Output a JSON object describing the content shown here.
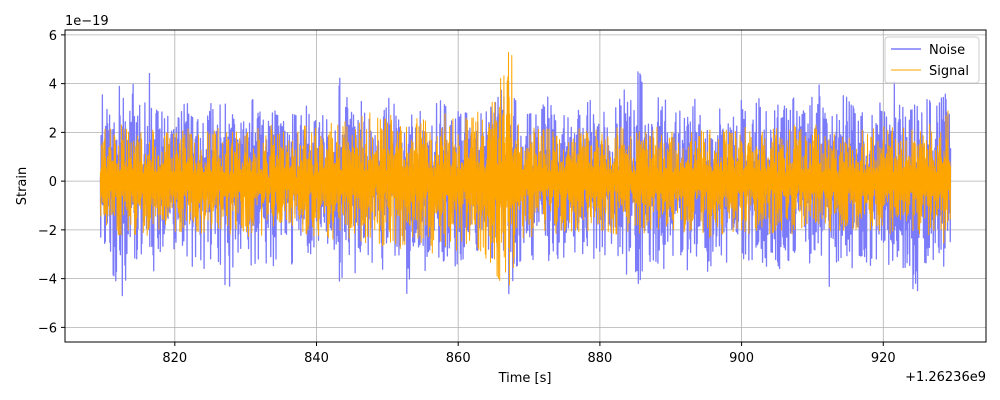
{
  "chart_data": {
    "type": "line",
    "title": "",
    "xlabel": "Time [s]",
    "ylabel": "Strain",
    "x_offset_label": "+1.26236e9",
    "y_scale_label": "1e−19",
    "xlim": [
      804.5,
      934.5
    ],
    "ylim": [
      -6.6,
      6.2
    ],
    "x_ticks": [
      820,
      840,
      860,
      880,
      900,
      920
    ],
    "x_tick_labels": [
      "820",
      "840",
      "860",
      "880",
      "900",
      "920"
    ],
    "y_ticks": [
      -6,
      -4,
      -2,
      0,
      2,
      4,
      6
    ],
    "y_tick_labels": [
      "−6",
      "−4",
      "−2",
      "0",
      "2",
      "4",
      "6"
    ],
    "grid": true,
    "legend_position": "upper right",
    "x_range": [
      809.5,
      929.5
    ],
    "series": [
      {
        "name": "Noise",
        "color": "#7b7bfa",
        "envelope": [
          [
            809.5,
            4.0,
            -2.6
          ],
          [
            810.5,
            3.2,
            -2.8
          ],
          [
            811.5,
            2.6,
            -4.1
          ],
          [
            812.5,
            4.5,
            -6.0
          ],
          [
            813.5,
            3.1,
            -2.5
          ],
          [
            814.5,
            5.6,
            -3.6
          ],
          [
            815.5,
            3.0,
            -2.8
          ],
          [
            816.5,
            4.6,
            -4.2
          ],
          [
            817.5,
            2.8,
            -3.3
          ],
          [
            818.5,
            3.2,
            -2.6
          ],
          [
            819.5,
            2.5,
            -3.0
          ],
          [
            820.5,
            2.6,
            -2.9
          ],
          [
            821.5,
            3.3,
            -3.2
          ],
          [
            822.5,
            3.0,
            -3.5
          ],
          [
            823.5,
            2.6,
            -3.2
          ],
          [
            824.5,
            3.6,
            -3.8
          ],
          [
            825.5,
            2.9,
            -2.7
          ],
          [
            826.5,
            4.3,
            -3.6
          ],
          [
            827.5,
            2.7,
            -4.7
          ],
          [
            828.5,
            3.2,
            -3.0
          ],
          [
            829.5,
            2.6,
            -2.8
          ],
          [
            830.5,
            3.5,
            -3.3
          ],
          [
            831.5,
            3.2,
            -3.8
          ],
          [
            832.5,
            2.5,
            -3.0
          ],
          [
            833.5,
            3.6,
            -3.9
          ],
          [
            834.5,
            2.7,
            -3.0
          ],
          [
            835.5,
            2.4,
            -2.7
          ],
          [
            836.5,
            2.8,
            -3.4
          ],
          [
            837.5,
            2.6,
            -2.8
          ],
          [
            838.5,
            3.2,
            -3.0
          ],
          [
            839.5,
            2.6,
            -3.2
          ],
          [
            840.5,
            2.8,
            -2.6
          ],
          [
            841.5,
            2.5,
            -2.8
          ],
          [
            842.5,
            2.7,
            -3.1
          ],
          [
            843.5,
            5.2,
            -4.9
          ],
          [
            844.5,
            3.0,
            -2.9
          ],
          [
            845.5,
            2.6,
            -3.8
          ],
          [
            846.5,
            3.4,
            -2.9
          ],
          [
            847.5,
            3.2,
            -3.4
          ],
          [
            848.5,
            2.7,
            -3.2
          ],
          [
            849.5,
            2.9,
            -3.7
          ],
          [
            850.5,
            3.6,
            -3.1
          ],
          [
            851.5,
            2.6,
            -3.0
          ],
          [
            852.5,
            2.9,
            -5.0
          ],
          [
            853.5,
            3.0,
            -3.4
          ],
          [
            854.5,
            2.8,
            -3.0
          ],
          [
            855.5,
            3.2,
            -3.8
          ],
          [
            856.5,
            3.0,
            -2.9
          ],
          [
            857.5,
            3.4,
            -3.4
          ],
          [
            858.5,
            3.6,
            -3.1
          ],
          [
            859.5,
            3.0,
            -3.5
          ],
          [
            860.5,
            2.7,
            -3.2
          ],
          [
            861.5,
            2.9,
            -3.2
          ],
          [
            862.5,
            2.5,
            -2.8
          ],
          [
            863.5,
            3.2,
            -3.0
          ],
          [
            864.5,
            3.0,
            -3.4
          ],
          [
            865.5,
            3.3,
            -3.1
          ],
          [
            866.5,
            4.4,
            -4.1
          ],
          [
            867.5,
            4.4,
            -4.9
          ],
          [
            868.5,
            2.9,
            -3.4
          ],
          [
            869.5,
            2.6,
            -2.9
          ],
          [
            870.5,
            3.1,
            -3.6
          ],
          [
            871.5,
            2.8,
            -3.0
          ],
          [
            872.5,
            3.7,
            -3.2
          ],
          [
            873.5,
            2.7,
            -3.4
          ],
          [
            874.5,
            3.0,
            -3.0
          ],
          [
            875.5,
            2.6,
            -3.3
          ],
          [
            876.5,
            3.2,
            -3.1
          ],
          [
            877.5,
            2.8,
            -3.0
          ],
          [
            878.5,
            3.4,
            -3.3
          ],
          [
            879.5,
            2.9,
            -3.1
          ],
          [
            880.5,
            3.1,
            -3.2
          ],
          [
            881.5,
            2.7,
            -3.0
          ],
          [
            882.5,
            3.2,
            -3.5
          ],
          [
            883.5,
            5.2,
            -4.1
          ],
          [
            884.5,
            3.0,
            -3.0
          ],
          [
            885.5,
            4.7,
            -4.3
          ],
          [
            886.5,
            3.2,
            -3.0
          ],
          [
            887.5,
            2.9,
            -3.5
          ],
          [
            888.5,
            4.3,
            -5.5
          ],
          [
            889.5,
            3.0,
            -3.1
          ],
          [
            890.5,
            2.7,
            -3.3
          ],
          [
            891.5,
            3.1,
            -3.0
          ],
          [
            892.5,
            2.9,
            -3.8
          ],
          [
            893.5,
            3.4,
            -3.1
          ],
          [
            894.5,
            2.9,
            -3.2
          ],
          [
            895.5,
            3.3,
            -3.9
          ],
          [
            896.5,
            3.0,
            -3.0
          ],
          [
            897.5,
            3.6,
            -3.4
          ],
          [
            898.5,
            2.8,
            -3.2
          ],
          [
            899.5,
            3.2,
            -3.3
          ],
          [
            900.5,
            3.7,
            -4.1
          ],
          [
            901.5,
            2.9,
            -3.2
          ],
          [
            902.5,
            3.4,
            -3.1
          ],
          [
            903.5,
            3.0,
            -3.6
          ],
          [
            904.5,
            2.8,
            -3.0
          ],
          [
            905.5,
            3.3,
            -3.7
          ],
          [
            906.5,
            2.9,
            -3.3
          ],
          [
            907.5,
            3.5,
            -3.0
          ],
          [
            908.5,
            3.1,
            -3.2
          ],
          [
            909.5,
            2.8,
            -3.4
          ],
          [
            910.5,
            4.7,
            -3.2
          ],
          [
            911.5,
            3.0,
            -3.0
          ],
          [
            912.5,
            3.2,
            -4.5
          ],
          [
            913.5,
            2.9,
            -3.3
          ],
          [
            914.5,
            3.6,
            -3.1
          ],
          [
            915.5,
            3.1,
            -3.6
          ],
          [
            916.5,
            3.0,
            -3.2
          ],
          [
            917.5,
            3.5,
            -3.8
          ],
          [
            918.5,
            2.9,
            -3.3
          ],
          [
            919.5,
            3.2,
            -3.1
          ],
          [
            920.5,
            3.4,
            -3.5
          ],
          [
            921.5,
            4.2,
            -3.2
          ],
          [
            922.5,
            3.0,
            -3.0
          ],
          [
            923.5,
            3.1,
            -4.8
          ],
          [
            924.5,
            3.3,
            -5.1
          ],
          [
            925.5,
            2.8,
            -3.3
          ],
          [
            926.5,
            3.6,
            -3.4
          ],
          [
            927.5,
            3.0,
            -3.2
          ],
          [
            928.5,
            4.2,
            -3.6
          ],
          [
            929.5,
            2.9,
            -3.2
          ]
        ]
      },
      {
        "name": "Signal",
        "color": "#ffa500",
        "envelope": [
          [
            809.5,
            2.0,
            -2.0
          ],
          [
            810.5,
            2.2,
            -2.1
          ],
          [
            811.5,
            2.1,
            -2.2
          ],
          [
            812.5,
            2.4,
            -2.2
          ],
          [
            813.5,
            2.1,
            -2.0
          ],
          [
            814.5,
            2.3,
            -2.2
          ],
          [
            815.5,
            2.0,
            -2.1
          ],
          [
            816.5,
            2.2,
            -2.3
          ],
          [
            817.5,
            2.0,
            -2.0
          ],
          [
            818.5,
            2.1,
            -2.1
          ],
          [
            819.5,
            1.9,
            -2.0
          ],
          [
            820.5,
            2.0,
            -2.1
          ],
          [
            821.5,
            2.1,
            -2.0
          ],
          [
            822.5,
            2.2,
            -2.2
          ],
          [
            823.5,
            2.0,
            -2.1
          ],
          [
            824.5,
            2.3,
            -2.2
          ],
          [
            825.5,
            2.1,
            -2.0
          ],
          [
            826.5,
            2.2,
            -2.3
          ],
          [
            827.5,
            2.0,
            -2.2
          ],
          [
            828.5,
            2.1,
            -2.1
          ],
          [
            829.5,
            2.0,
            -2.0
          ],
          [
            830.5,
            2.4,
            -2.3
          ],
          [
            831.5,
            2.2,
            -2.6
          ],
          [
            832.5,
            2.0,
            -2.1
          ],
          [
            833.5,
            2.3,
            -2.2
          ],
          [
            834.5,
            2.1,
            -2.0
          ],
          [
            835.5,
            2.0,
            -2.1
          ],
          [
            836.5,
            2.2,
            -2.2
          ],
          [
            837.5,
            2.1,
            -2.0
          ],
          [
            838.5,
            2.3,
            -2.2
          ],
          [
            839.5,
            2.2,
            -2.3
          ],
          [
            840.5,
            2.1,
            -2.2
          ],
          [
            841.5,
            2.5,
            -2.3
          ],
          [
            842.5,
            2.3,
            -2.4
          ],
          [
            843.5,
            2.6,
            -2.8
          ],
          [
            844.5,
            2.3,
            -2.4
          ],
          [
            845.5,
            2.2,
            -2.3
          ],
          [
            846.5,
            2.7,
            -2.5
          ],
          [
            847.5,
            2.8,
            -2.6
          ],
          [
            848.5,
            2.6,
            -2.9
          ],
          [
            849.5,
            2.5,
            -2.6
          ],
          [
            850.5,
            2.7,
            -2.5
          ],
          [
            851.5,
            3.5,
            -2.6
          ],
          [
            852.5,
            2.9,
            -3.1
          ],
          [
            853.5,
            2.7,
            -2.8
          ],
          [
            854.5,
            2.5,
            -2.6
          ],
          [
            855.5,
            2.8,
            -2.7
          ],
          [
            856.5,
            2.6,
            -3.0
          ],
          [
            857.5,
            2.9,
            -2.8
          ],
          [
            858.5,
            2.7,
            -2.6
          ],
          [
            859.5,
            2.5,
            -2.9
          ],
          [
            860.5,
            2.8,
            -2.7
          ],
          [
            861.5,
            2.6,
            -2.5
          ],
          [
            862.5,
            2.7,
            -2.8
          ],
          [
            863.5,
            3.2,
            -3.0
          ],
          [
            864.5,
            3.6,
            -3.4
          ],
          [
            865.5,
            4.1,
            -3.9
          ],
          [
            866.5,
            4.8,
            -4.4
          ],
          [
            867.5,
            5.6,
            -5.3
          ],
          [
            868.5,
            2.5,
            -2.6
          ],
          [
            869.5,
            2.3,
            -2.2
          ],
          [
            870.5,
            2.2,
            -2.3
          ],
          [
            871.5,
            2.1,
            -2.0
          ],
          [
            872.5,
            2.2,
            -2.1
          ],
          [
            873.5,
            2.0,
            -2.2
          ],
          [
            874.5,
            2.1,
            -2.0
          ],
          [
            875.5,
            2.0,
            -2.1
          ],
          [
            876.5,
            2.2,
            -2.0
          ],
          [
            877.5,
            2.1,
            -2.2
          ],
          [
            878.5,
            2.0,
            -2.0
          ],
          [
            879.5,
            2.2,
            -2.1
          ],
          [
            880.5,
            2.1,
            -2.0
          ],
          [
            881.5,
            2.0,
            -2.1
          ],
          [
            882.5,
            2.2,
            -2.2
          ],
          [
            883.5,
            2.3,
            -2.1
          ],
          [
            884.5,
            2.1,
            -2.0
          ],
          [
            885.5,
            2.2,
            -2.2
          ],
          [
            886.5,
            2.0,
            -2.1
          ],
          [
            887.5,
            2.1,
            -2.0
          ],
          [
            888.5,
            2.3,
            -2.4
          ],
          [
            889.5,
            2.1,
            -2.1
          ],
          [
            890.5,
            2.0,
            -2.0
          ],
          [
            891.5,
            2.2,
            -2.1
          ],
          [
            892.5,
            2.1,
            -2.2
          ],
          [
            893.5,
            2.0,
            -2.0
          ],
          [
            894.5,
            2.2,
            -2.1
          ],
          [
            895.5,
            2.1,
            -2.3
          ],
          [
            896.5,
            2.0,
            -2.0
          ],
          [
            897.5,
            2.3,
            -2.2
          ],
          [
            898.5,
            2.1,
            -2.1
          ],
          [
            899.5,
            2.0,
            -2.0
          ],
          [
            900.5,
            2.2,
            -2.2
          ],
          [
            901.5,
            2.1,
            -2.1
          ],
          [
            902.5,
            2.3,
            -2.0
          ],
          [
            903.5,
            2.0,
            -2.2
          ],
          [
            904.5,
            2.2,
            -2.1
          ],
          [
            905.5,
            2.1,
            -2.0
          ],
          [
            906.5,
            2.0,
            -2.1
          ],
          [
            907.5,
            2.3,
            -2.2
          ],
          [
            908.5,
            2.1,
            -2.0
          ],
          [
            909.5,
            2.2,
            -2.2
          ],
          [
            910.5,
            2.3,
            -2.1
          ],
          [
            911.5,
            2.0,
            -2.0
          ],
          [
            912.5,
            2.2,
            -2.2
          ],
          [
            913.5,
            2.1,
            -2.1
          ],
          [
            914.5,
            2.3,
            -2.2
          ],
          [
            915.5,
            2.1,
            -2.0
          ],
          [
            916.5,
            2.2,
            -2.1
          ],
          [
            917.5,
            2.0,
            -2.2
          ],
          [
            918.5,
            2.2,
            -2.0
          ],
          [
            919.5,
            2.1,
            -2.1
          ],
          [
            920.5,
            2.3,
            -2.2
          ],
          [
            921.5,
            2.2,
            -2.1
          ],
          [
            922.5,
            2.1,
            -2.0
          ],
          [
            923.5,
            2.3,
            -2.3
          ],
          [
            924.5,
            2.2,
            -2.1
          ],
          [
            925.5,
            2.1,
            -2.2
          ],
          [
            926.5,
            2.4,
            -2.2
          ],
          [
            927.5,
            2.2,
            -2.1
          ],
          [
            928.5,
            4.3,
            -2.6
          ],
          [
            929.5,
            2.1,
            -2.0
          ]
        ]
      }
    ]
  }
}
